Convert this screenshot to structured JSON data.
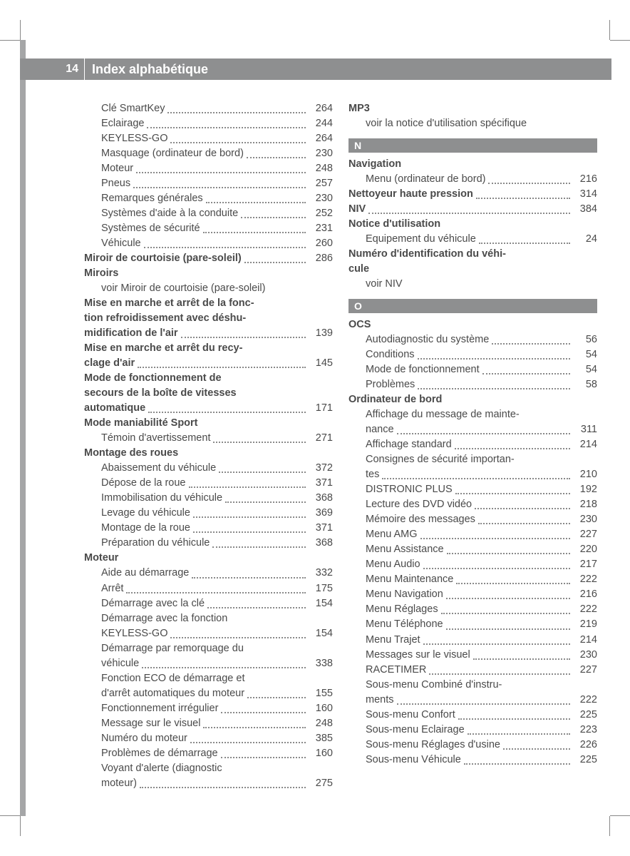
{
  "page_number": "14",
  "page_title": "Index alphabétique",
  "colors": {
    "header_bg": "#8e8f90",
    "header_text": "#ffffff",
    "body_text": "#4a4a4a",
    "sideband": "#a5a6a7"
  },
  "left": {
    "r1": {
      "label": "Clé SmartKey",
      "pg": "264"
    },
    "r2": {
      "label": "Eclairage",
      "pg": "244"
    },
    "r3": {
      "label": "KEYLESS-GO",
      "pg": "264"
    },
    "r4": {
      "label": "Masquage (ordinateur de bord)",
      "pg": "230"
    },
    "r5": {
      "label": "Moteur",
      "pg": "248"
    },
    "r6": {
      "label": "Pneus",
      "pg": "257"
    },
    "r7": {
      "label": "Remarques générales",
      "pg": "230"
    },
    "r8": {
      "label": "Systèmes d'aide à la conduite",
      "pg": "252"
    },
    "r9": {
      "label": "Systèmes de sécurité",
      "pg": "231"
    },
    "r10": {
      "label": "Véhicule",
      "pg": "260"
    },
    "h1": {
      "label": "Miroir de courtoisie (pare-soleil)",
      "pg": "286"
    },
    "h2": "Miroirs",
    "see1": "voir Miroir de courtoisie (pare-soleil)",
    "h3a": "Mise en marche et arrêt de la fonc-",
    "h3b": "tion refroidissement avec déshu-",
    "h3c": {
      "label": "midification de l'air",
      "pg": "139"
    },
    "h4a": "Mise en marche et arrêt du recy-",
    "h4b": {
      "label": "clage d'air",
      "pg": "145"
    },
    "h5a": "Mode de fonctionnement de",
    "h5b": "secours de la boîte de vitesses",
    "h5c": {
      "label": "automatique",
      "pg": "171"
    },
    "h6": "Mode maniabilité Sport",
    "r11": {
      "label": "Témoin d'avertissement",
      "pg": "271"
    },
    "h7": "Montage des roues",
    "r12": {
      "label": "Abaissement du véhicule",
      "pg": "372"
    },
    "r13": {
      "label": "Dépose de la roue",
      "pg": "371"
    },
    "r14": {
      "label": "Immobilisation du véhicule",
      "pg": "368"
    },
    "r15": {
      "label": "Levage du véhicule",
      "pg": "369"
    },
    "r16": {
      "label": "Montage de la roue",
      "pg": "371"
    },
    "r17": {
      "label": "Préparation du véhicule",
      "pg": "368"
    },
    "h8": "Moteur",
    "r18": {
      "label": "Aide au démarrage",
      "pg": "332"
    },
    "r19": {
      "label": "Arrêt",
      "pg": "175"
    },
    "r20": {
      "label": "Démarrage avec la clé",
      "pg": "154"
    },
    "w1": "Démarrage avec la fonction",
    "r21": {
      "label": "KEYLESS-GO",
      "pg": "154"
    },
    "w2": "Démarrage par remorquage du",
    "r22": {
      "label": "véhicule",
      "pg": "338"
    },
    "w3": "Fonction ECO de démarrage et",
    "r23": {
      "label": "d'arrêt automatiques du moteur",
      "pg": "155"
    },
    "r24": {
      "label": "Fonctionnement irrégulier",
      "pg": "160"
    },
    "r25": {
      "label": "Message sur le visuel",
      "pg": "248"
    },
    "r26": {
      "label": "Numéro du moteur",
      "pg": "385"
    },
    "r27": {
      "label": "Problèmes de démarrage",
      "pg": "160"
    },
    "w4": "Voyant d'alerte (diagnostic",
    "r28": {
      "label": "moteur)",
      "pg": "275"
    }
  },
  "right": {
    "h1": "MP3",
    "see1": "voir la notice d'utilisation spécifique",
    "secN": "N",
    "h2": "Navigation",
    "r1": {
      "label": "Menu (ordinateur de bord)",
      "pg": "216"
    },
    "h3": {
      "label": "Nettoyeur haute pression",
      "pg": "314"
    },
    "h4": {
      "label": "NIV",
      "pg": "384"
    },
    "h5": "Notice d'utilisation",
    "r2": {
      "label": "Equipement du véhicule",
      "pg": "24"
    },
    "h6a": "Numéro d'identification du véhi-",
    "h6b": "cule",
    "see2": "voir NIV",
    "secO": "O",
    "h7": "OCS",
    "r3": {
      "label": "Autodiagnostic du système",
      "pg": "56"
    },
    "r4": {
      "label": "Conditions",
      "pg": "54"
    },
    "r5": {
      "label": "Mode de fonctionnement",
      "pg": "54"
    },
    "r6": {
      "label": "Problèmes",
      "pg": "58"
    },
    "h8": "Ordinateur de bord",
    "w1": "Affichage du message de mainte-",
    "r7": {
      "label": "nance",
      "pg": "311"
    },
    "r8": {
      "label": "Affichage standard",
      "pg": "214"
    },
    "w2": "Consignes de sécurité importan-",
    "r9": {
      "label": "tes",
      "pg": "210"
    },
    "r10": {
      "label": "DISTRONIC PLUS",
      "pg": "192"
    },
    "r11": {
      "label": "Lecture des DVD vidéo",
      "pg": "218"
    },
    "r12": {
      "label": "Mémoire des messages",
      "pg": "230"
    },
    "r13": {
      "label": "Menu AMG",
      "pg": "227"
    },
    "r14": {
      "label": "Menu Assistance",
      "pg": "220"
    },
    "r15": {
      "label": "Menu Audio",
      "pg": "217"
    },
    "r16": {
      "label": "Menu Maintenance",
      "pg": "222"
    },
    "r17": {
      "label": "Menu Navigation",
      "pg": "216"
    },
    "r18": {
      "label": "Menu Réglages",
      "pg": "222"
    },
    "r19": {
      "label": "Menu Téléphone",
      "pg": "219"
    },
    "r20": {
      "label": "Menu Trajet",
      "pg": "214"
    },
    "r21": {
      "label": "Messages sur le visuel",
      "pg": "230"
    },
    "r22": {
      "label": "RACETIMER",
      "pg": "227"
    },
    "w3": "Sous-menu Combiné d'instru-",
    "r23": {
      "label": "ments",
      "pg": "222"
    },
    "r24": {
      "label": "Sous-menu Confort",
      "pg": "225"
    },
    "r25": {
      "label": "Sous-menu Eclairage",
      "pg": "223"
    },
    "r26": {
      "label": "Sous-menu Réglages d'usine",
      "pg": "226"
    },
    "r27": {
      "label": "Sous-menu Véhicule",
      "pg": "225"
    }
  }
}
